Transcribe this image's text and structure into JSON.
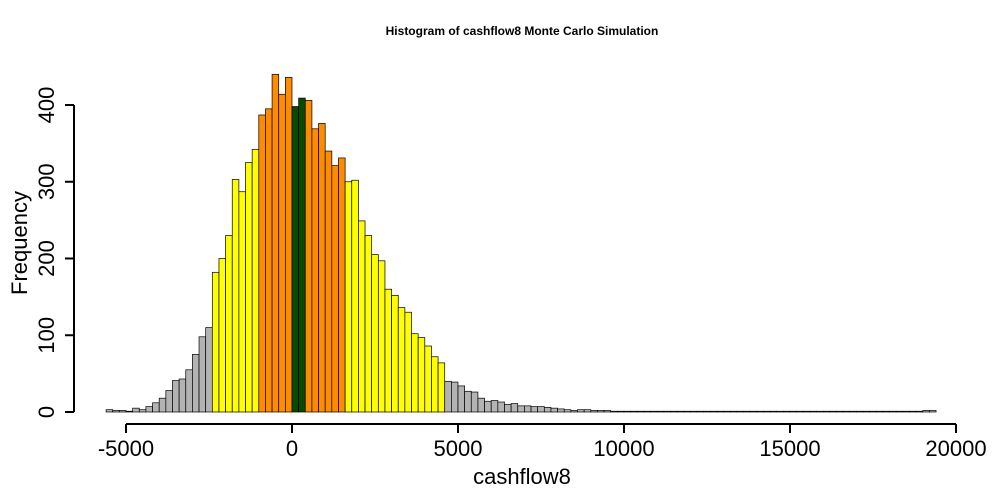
{
  "chart_data": {
    "type": "bar",
    "title": "Histogram of  cashflow8  Monte Carlo Simulation",
    "xlabel": "cashflow8",
    "ylabel": "Frequency",
    "xlim": [
      -5500,
      19500
    ],
    "ylim": [
      0,
      440
    ],
    "x_ticks": [
      -5000,
      0,
      5000,
      10000,
      15000,
      20000
    ],
    "x_tick_labels": [
      "-5000",
      "0",
      "5000",
      "10000",
      "15000",
      "20000"
    ],
    "y_ticks": [
      0,
      100,
      200,
      300,
      400
    ],
    "y_tick_labels": [
      "0",
      "100",
      "200",
      "300",
      "400"
    ],
    "bin_width": 200,
    "bin_start": -5600,
    "colors": {
      "tail": "#b3b3b3",
      "outer": "#ffff00",
      "inner": "#ff8c00",
      "center": "#0a4a00"
    },
    "frequencies": [
      3,
      2,
      2,
      1,
      5,
      3,
      7,
      12,
      18,
      28,
      41,
      43,
      55,
      75,
      98,
      110,
      182,
      200,
      230,
      303,
      287,
      325,
      342,
      387,
      395,
      440,
      414,
      436,
      398,
      409,
      406,
      369,
      376,
      340,
      321,
      331,
      300,
      302,
      249,
      230,
      205,
      197,
      160,
      152,
      136,
      130,
      102,
      97,
      86,
      72,
      64,
      40,
      39,
      34,
      27,
      26,
      18,
      14,
      15,
      13,
      10,
      11,
      8,
      8,
      7,
      7,
      6,
      5,
      4,
      3,
      2,
      3,
      3,
      2,
      2,
      2,
      1,
      1,
      1,
      1,
      1,
      1,
      1,
      1,
      1,
      1,
      1,
      1,
      1,
      1,
      1,
      1,
      1,
      1,
      1,
      1,
      1,
      1,
      1,
      1,
      1,
      1,
      1,
      1,
      1,
      1,
      1,
      1,
      1,
      1,
      1,
      1,
      1,
      1,
      1,
      1,
      1,
      1,
      1,
      1,
      1,
      1,
      1,
      2,
      2
    ],
    "colored_segments": [
      {
        "band": "outer",
        "from": -2400,
        "to": -1000
      },
      {
        "band": "inner",
        "from": -1000,
        "to": 0
      },
      {
        "band": "center",
        "from": 0,
        "to": 400
      },
      {
        "band": "inner",
        "from": 400,
        "to": 1600
      },
      {
        "band": "outer",
        "from": 1600,
        "to": 4600
      }
    ],
    "grid": false,
    "legend": "none"
  }
}
